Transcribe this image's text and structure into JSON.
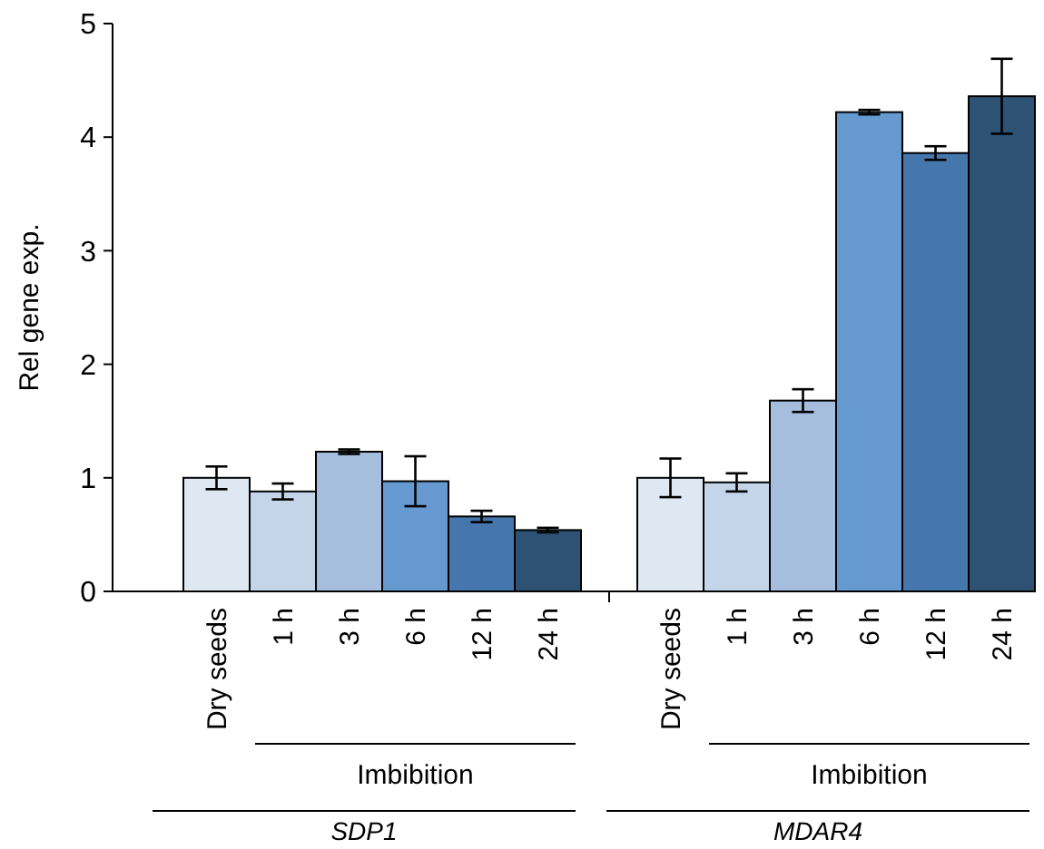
{
  "chart_data": {
    "type": "bar",
    "ylabel": "Rel gene exp.",
    "categories": [
      "Dry seeds",
      "1 h",
      "3 h",
      "6 h",
      "12 h",
      "24 h",
      "Dry seeds",
      "1 h",
      "3 h",
      "6 h",
      "12 h",
      "24 h"
    ],
    "values": [
      1.0,
      0.88,
      1.23,
      0.97,
      0.66,
      0.54,
      1.0,
      0.96,
      1.68,
      4.22,
      3.86,
      4.36
    ],
    "errors": [
      0.1,
      0.07,
      0.02,
      0.22,
      0.05,
      0.02,
      0.17,
      0.08,
      0.1,
      0.02,
      0.06,
      0.33
    ],
    "colors": [
      "#dfe7f2",
      "#c4d4e9",
      "#a5bedd",
      "#6699d0",
      "#4577ad",
      "#2d5274",
      "#dfe7f2",
      "#c4d4e9",
      "#a5bedd",
      "#6699d0",
      "#4577ad",
      "#2d5274"
    ],
    "ylim": [
      0,
      5
    ],
    "yticks": [
      0,
      1,
      2,
      3,
      4,
      5
    ],
    "annotations": [
      "Imbibition",
      "Imbibition",
      "SDP1",
      "MDAR4"
    ]
  }
}
